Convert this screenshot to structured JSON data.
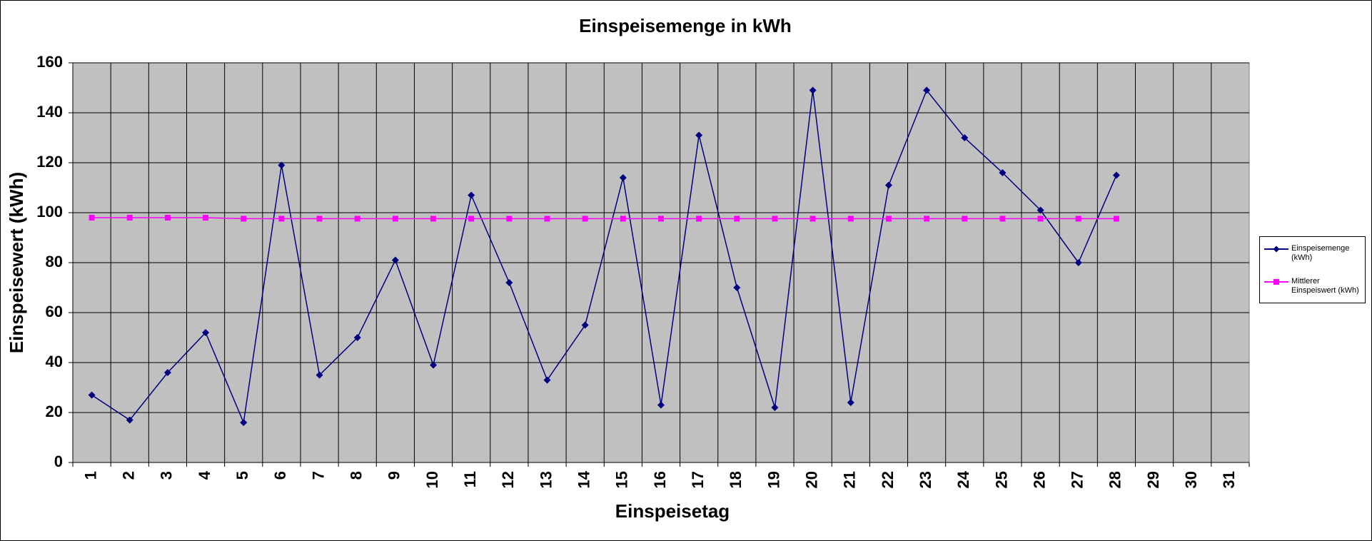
{
  "chart_data": {
    "type": "line",
    "title": "Einspeisemenge in kWh",
    "x_label": "Einspeisetag",
    "y_label": "Einspeisewert  (kWh)",
    "categories": [
      "1",
      "2",
      "3",
      "4",
      "5",
      "6",
      "7",
      "8",
      "9",
      "10",
      "11",
      "12",
      "13",
      "14",
      "15",
      "16",
      "17",
      "18",
      "19",
      "20",
      "21",
      "22",
      "23",
      "24",
      "25",
      "26",
      "27",
      "28",
      "29",
      "30",
      "31"
    ],
    "series": [
      {
        "name": "Einspeisemenge (kWh)",
        "color": "#000080",
        "marker": "diamond",
        "values": [
          27,
          17,
          36,
          52,
          16,
          119,
          35,
          50,
          81,
          39,
          107,
          72,
          33,
          55,
          114,
          23,
          131,
          70,
          22,
          149,
          24,
          111,
          149,
          130,
          116,
          101,
          80,
          115,
          null,
          null,
          null
        ]
      },
      {
        "name": "Mittlerer Einspeiswert (kWh)",
        "color": "#ff00ff",
        "marker": "square",
        "values": [
          98,
          98,
          98,
          98,
          97.6,
          97.6,
          97.6,
          97.6,
          97.6,
          97.6,
          97.6,
          97.6,
          97.6,
          97.6,
          97.6,
          97.6,
          97.6,
          97.6,
          97.6,
          97.6,
          97.6,
          97.6,
          97.6,
          97.6,
          97.6,
          97.6,
          97.6,
          97.6,
          null,
          null,
          null
        ]
      }
    ],
    "ylim": [
      0,
      160
    ],
    "yticks": [
      0,
      20,
      40,
      60,
      80,
      100,
      120,
      140,
      160
    ],
    "grid": true,
    "legend": "right"
  }
}
